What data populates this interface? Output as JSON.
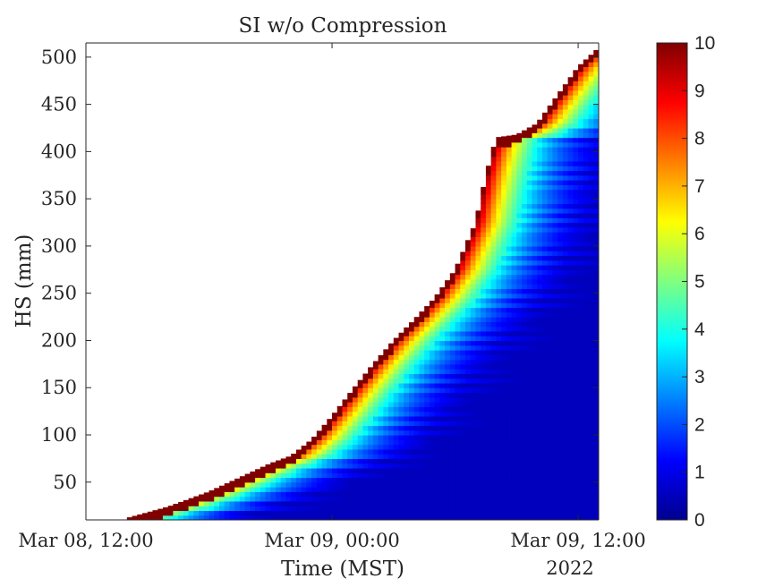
{
  "chart_data": {
    "type": "heatmap",
    "title": "SI w/o Compression",
    "xlabel": "Time (MST)",
    "ylabel": "HS (mm)",
    "x_ticks": [
      "Mar 08, 12:00",
      "Mar 09, 00:00",
      "Mar 09, 12:00"
    ],
    "x_secondary_label": "2022",
    "x_range_hours": [
      0,
      25
    ],
    "y_ticks": [
      50,
      100,
      150,
      200,
      250,
      300,
      350,
      400,
      450,
      500
    ],
    "ylim": [
      10,
      515
    ],
    "colorbar": {
      "ticks": [
        0,
        1,
        2,
        3,
        4,
        5,
        6,
        7,
        8,
        9,
        10
      ],
      "range": [
        0,
        10
      ],
      "colormap": "jet"
    },
    "snow_height_profile": [
      {
        "hour": 2,
        "hs": 12
      },
      {
        "hour": 3,
        "hs": 18
      },
      {
        "hour": 4,
        "hs": 24
      },
      {
        "hour": 5,
        "hs": 32
      },
      {
        "hour": 6,
        "hs": 40
      },
      {
        "hour": 7,
        "hs": 50
      },
      {
        "hour": 8,
        "hs": 60
      },
      {
        "hour": 9,
        "hs": 70
      },
      {
        "hour": 10,
        "hs": 78
      },
      {
        "hour": 11,
        "hs": 95
      },
      {
        "hour": 12,
        "hs": 120
      },
      {
        "hour": 13,
        "hs": 148
      },
      {
        "hour": 14,
        "hs": 175
      },
      {
        "hour": 15,
        "hs": 200
      },
      {
        "hour": 16,
        "hs": 222
      },
      {
        "hour": 17,
        "hs": 245
      },
      {
        "hour": 18,
        "hs": 275
      },
      {
        "hour": 19,
        "hs": 325
      },
      {
        "hour": 19.5,
        "hs": 375
      },
      {
        "hour": 20,
        "hs": 415
      },
      {
        "hour": 21,
        "hs": 418
      },
      {
        "hour": 22,
        "hs": 430
      },
      {
        "hour": 23,
        "hs": 460
      },
      {
        "hour": 24,
        "hs": 490
      },
      {
        "hour": 25,
        "hs": 510
      }
    ]
  }
}
